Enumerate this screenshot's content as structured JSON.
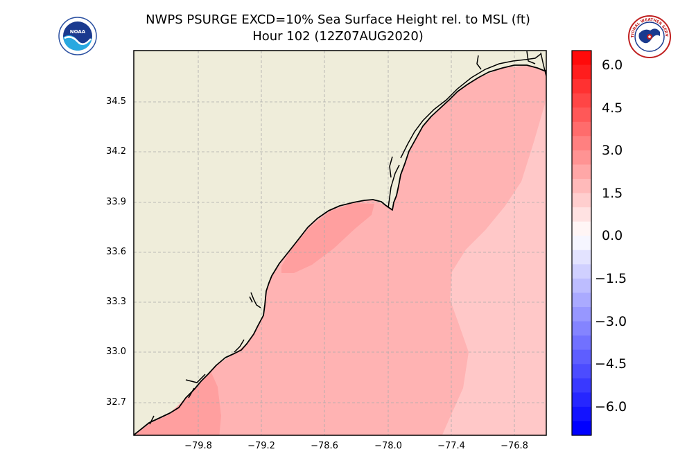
{
  "title_line1": "NWPS PSURGE EXCD=10% Sea Surface Height rel. to MSL (ft)",
  "title_line2": "Hour 102 (12Z07AUG2020)",
  "logos": {
    "left": {
      "name": "noaa-logo",
      "text": "NOAA"
    },
    "right": {
      "name": "nws-logo",
      "text": "NATIONAL WEATHER SERVICE"
    }
  },
  "colors": {
    "land": "#efedda",
    "sea_1_5_to_3": "#ffb3b3",
    "sea_3_to_3_5": "#ff9f9f",
    "sea_0_5_to_1_5": "#ffc8c8",
    "coastline": "#000000",
    "grid": "#aaaaaa"
  },
  "map": {
    "lat_labels": [
      "34.5",
      "34.2",
      "33.9",
      "33.6",
      "33.3",
      "33.0",
      "32.7"
    ],
    "lon_labels": [
      "−79.8",
      "−79.2",
      "−78.6",
      "−78.0",
      "−77.4",
      "−76.8"
    ]
  },
  "colorbar": {
    "min": -6.75,
    "max": 6.5,
    "step": 0.5,
    "tick_labels": [
      "6.0",
      "4.5",
      "3.0",
      "1.5",
      "0.0",
      "−1.5",
      "−3.0",
      "−4.5",
      "−6.0"
    ]
  }
}
